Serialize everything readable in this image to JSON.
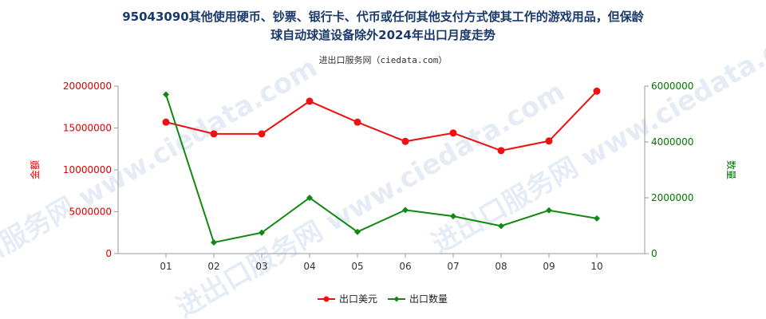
{
  "chart_data": {
    "type": "line",
    "title_line1": "95043090其他使用硬币、钞票、银行卡、代币或任何其他支付方式使其工作的游戏用品，但保龄",
    "title_line2": "球自动球道设备除外2024年出口月度走势",
    "subtitle": "进出口服务网（ciedata.com）",
    "categories": [
      "01",
      "02",
      "03",
      "04",
      "05",
      "06",
      "07",
      "08",
      "09",
      "10"
    ],
    "y_left": {
      "label": "金额",
      "ylim": [
        0,
        20000000
      ],
      "ticks": [
        "0",
        "5000000",
        "10000000",
        "15000000",
        "20000000"
      ],
      "color": "#dd0000"
    },
    "y_right": {
      "label": "数量",
      "ylim": [
        0,
        6000000
      ],
      "ticks": [
        "0",
        "2000000",
        "4000000",
        "6000000"
      ],
      "color": "#007700"
    },
    "series": [
      {
        "name": "出口美元",
        "axis": "left",
        "color": "#ee1111",
        "values": [
          15700000,
          14300000,
          14300000,
          18200000,
          15700000,
          13400000,
          14400000,
          12300000,
          13450000,
          19400000
        ]
      },
      {
        "name": "出口数量",
        "axis": "right",
        "color": "#118811",
        "values": [
          5700000,
          400000,
          750000,
          2000000,
          780000,
          1560000,
          1340000,
          990000,
          1550000,
          1260000
        ]
      }
    ],
    "watermark": "进出口服务网 www.ciedata.com",
    "legend_position": "bottom-center",
    "grid": false
  }
}
